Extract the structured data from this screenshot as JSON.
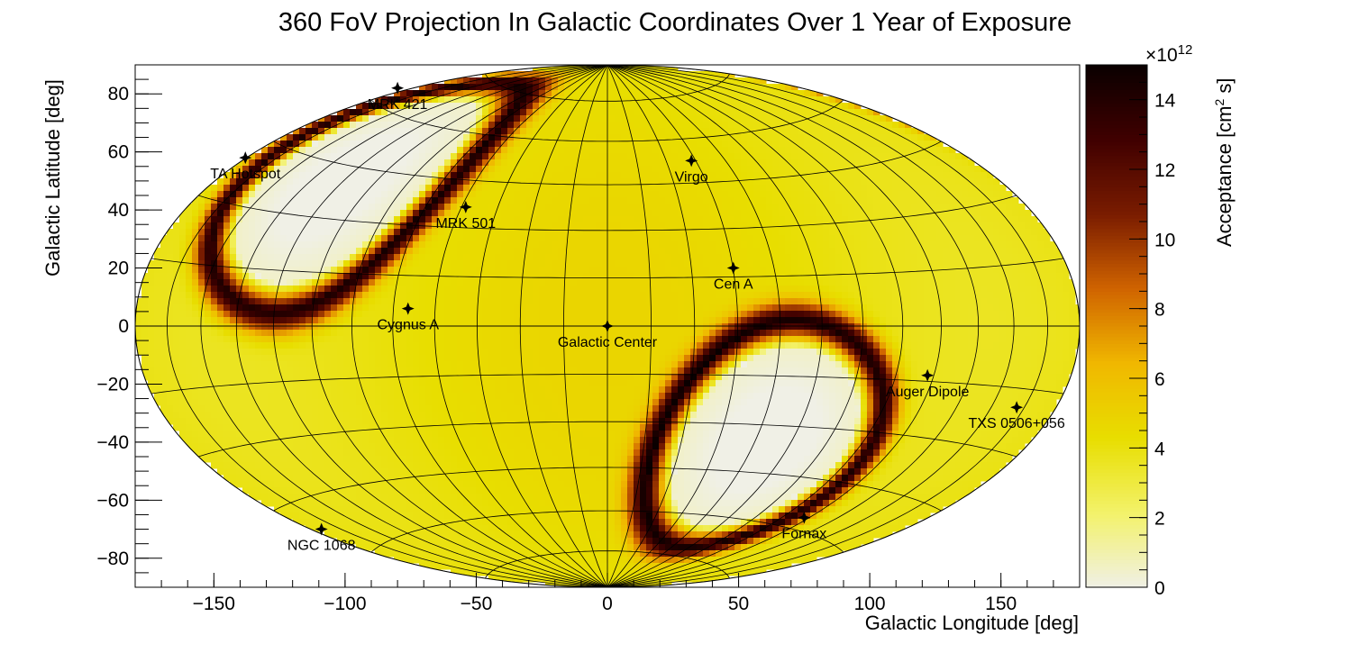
{
  "chart_data": {
    "type": "heatmap",
    "projection": "hammer-aitoff",
    "title": "360 FoV Projection In Galactic Coordinates Over 1 Year of Exposure",
    "xlabel": "Galactic Longitude [deg]",
    "ylabel": "Galactic Latitude [deg]",
    "xlim": [
      -180,
      180
    ],
    "ylim": [
      -90,
      90
    ],
    "xticks": [
      -150,
      -100,
      -50,
      0,
      50,
      100,
      150
    ],
    "xtick_labels": [
      "−150",
      "−100",
      "−50",
      "0",
      "50",
      "100",
      "150"
    ],
    "yticks": [
      -80,
      -60,
      -40,
      -20,
      0,
      20,
      40,
      60,
      80
    ],
    "ytick_labels": [
      "−80",
      "−60",
      "−40",
      "−20",
      "0",
      "20",
      "40",
      "60",
      "80"
    ],
    "graticule": {
      "lon_step_deg": 15,
      "lat_step_deg": 15
    },
    "colorbar": {
      "label_main": "Acceptance [cm",
      "label_sup": "2",
      "label_end": " s]",
      "exponent_base": "×10",
      "exponent_power": "12",
      "range": [
        0,
        15
      ],
      "ticks": [
        0,
        2,
        4,
        6,
        8,
        10,
        12,
        14
      ],
      "tick_labels": [
        "0",
        "2",
        "4",
        "6",
        "8",
        "10",
        "12",
        "14"
      ],
      "palette": [
        "#f0f0e6",
        "#f3f26a",
        "#e8de00",
        "#f0b800",
        "#d06400",
        "#7a1c00",
        "#400000",
        "#0a0000"
      ]
    },
    "blind_regions": [
      {
        "center_l": -120,
        "center_b": 40,
        "note": "northern low-acceptance region"
      },
      {
        "center_l": 65,
        "center_b": -35,
        "note": "southern low-acceptance region"
      }
    ],
    "sources": [
      {
        "name": "MRK 421",
        "l": -80,
        "b": 82
      },
      {
        "name": "TA Hotspot",
        "l": -138,
        "b": 58
      },
      {
        "name": "Virgo",
        "l": 32,
        "b": 57
      },
      {
        "name": "MRK 501",
        "l": -54,
        "b": 41
      },
      {
        "name": "Cen A",
        "l": 48,
        "b": 20
      },
      {
        "name": "Cygnus A",
        "l": -76,
        "b": 6
      },
      {
        "name": "Galactic Center",
        "l": 0,
        "b": 0
      },
      {
        "name": "Auger Dipole",
        "l": 122,
        "b": -17
      },
      {
        "name": "TXS 0506+056",
        "l": 156,
        "b": -28
      },
      {
        "name": "NGC 1068",
        "l": -109,
        "b": -70
      },
      {
        "name": "Fornax",
        "l": 75,
        "b": -66
      }
    ]
  }
}
